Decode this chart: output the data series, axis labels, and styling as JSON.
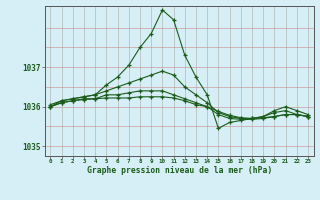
{
  "title": "Graphe pression niveau de la mer (hPa)",
  "background_color": "#d6eef5",
  "plot_background": "#d6eef5",
  "grid_color_v": "#aaaaaa",
  "grid_color_h": "#ff9999",
  "line_color": "#1a5c1a",
  "marker_color": "#1a5c1a",
  "x_ticks": [
    0,
    1,
    2,
    3,
    4,
    5,
    6,
    7,
    8,
    9,
    10,
    11,
    12,
    13,
    14,
    15,
    16,
    17,
    18,
    19,
    20,
    21,
    22,
    23
  ],
  "ylim": [
    1034.75,
    1038.55
  ],
  "yticks": [
    1035,
    1036,
    1037
  ],
  "series": [
    [
      1036.0,
      1036.15,
      1036.2,
      1036.25,
      1036.3,
      1036.55,
      1036.75,
      1037.05,
      1037.5,
      1037.85,
      1038.45,
      1038.2,
      1037.3,
      1036.75,
      1036.3,
      1035.45,
      1035.6,
      1035.65,
      1035.7,
      1035.75,
      1035.85,
      1035.9,
      1035.8,
      1035.75
    ],
    [
      1036.05,
      1036.15,
      1036.2,
      1036.25,
      1036.3,
      1036.4,
      1036.5,
      1036.6,
      1036.7,
      1036.8,
      1036.9,
      1036.8,
      1036.5,
      1036.3,
      1036.1,
      1035.85,
      1035.75,
      1035.7,
      1035.7,
      1035.75,
      1035.9,
      1036.0,
      1035.9,
      1035.8
    ],
    [
      1036.0,
      1036.1,
      1036.15,
      1036.2,
      1036.2,
      1036.3,
      1036.3,
      1036.35,
      1036.4,
      1036.4,
      1036.4,
      1036.3,
      1036.2,
      1036.1,
      1036.0,
      1035.8,
      1035.7,
      1035.68,
      1035.68,
      1035.7,
      1035.75,
      1035.8,
      1035.8,
      1035.75
    ],
    [
      1036.0,
      1036.1,
      1036.15,
      1036.18,
      1036.2,
      1036.22,
      1036.22,
      1036.22,
      1036.25,
      1036.25,
      1036.25,
      1036.22,
      1036.15,
      1036.05,
      1036.0,
      1035.88,
      1035.78,
      1035.72,
      1035.7,
      1035.72,
      1035.75,
      1035.8,
      1035.8,
      1035.75
    ]
  ]
}
